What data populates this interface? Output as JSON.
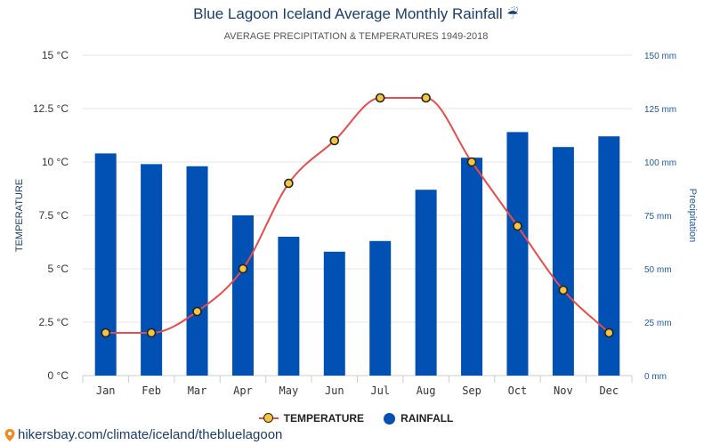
{
  "title": "Blue Lagoon Iceland Average Monthly Rainfall",
  "title_icon": "umbrella-rain-icon",
  "title_icon_glyph": "☔",
  "subtitle": "AVERAGE PRECIPITATION & TEMPERATURES 1949-2018",
  "footer": {
    "text": "hikersbay.com/climate/iceland/thebluelagoon",
    "icon": "location-pin-icon"
  },
  "legend": {
    "items": [
      {
        "label": "TEMPERATURE",
        "icon": "line-with-dot-marker"
      },
      {
        "label": "RAINFALL",
        "icon": "circle-marker"
      }
    ]
  },
  "colors": {
    "bar": "#0051b3",
    "line": "#e84c4c",
    "marker_fill": "#f5c542",
    "marker_stroke": "#222222",
    "grid": "#e6e6e6",
    "right_axis": "#1f5aa6"
  },
  "chart_data": {
    "type": "bar+line",
    "categories": [
      "Jan",
      "Feb",
      "Mar",
      "Apr",
      "May",
      "Jun",
      "Jul",
      "Aug",
      "Sep",
      "Oct",
      "Nov",
      "Dec"
    ],
    "series": [
      {
        "name": "RAINFALL",
        "type": "bar",
        "axis": "right",
        "values": [
          104,
          99,
          98,
          75,
          65,
          58,
          63,
          87,
          102,
          114,
          107,
          112
        ]
      },
      {
        "name": "TEMPERATURE",
        "type": "line",
        "axis": "left",
        "values": [
          2,
          2,
          3,
          5,
          9,
          11,
          13,
          13,
          10,
          7,
          4,
          2
        ]
      }
    ],
    "y_left": {
      "label": "TEMPERATURE",
      "range": [
        0,
        15
      ],
      "ticks": [
        0,
        2.5,
        5,
        7.5,
        10,
        12.5,
        15
      ],
      "tick_labels": [
        "0 °C",
        "2.5 °C",
        "5 °C",
        "7.5 °C",
        "10 °C",
        "12.5 °C",
        "15 °C"
      ]
    },
    "y_right": {
      "label": "Precipitation",
      "range": [
        0,
        150
      ],
      "ticks": [
        0,
        25,
        50,
        75,
        100,
        125,
        150
      ],
      "tick_labels": [
        "0 mm",
        "25 mm",
        "50 mm",
        "75 mm",
        "100 mm",
        "125 mm",
        "150 mm"
      ]
    },
    "grid": true,
    "legend_position": "bottom-center"
  }
}
